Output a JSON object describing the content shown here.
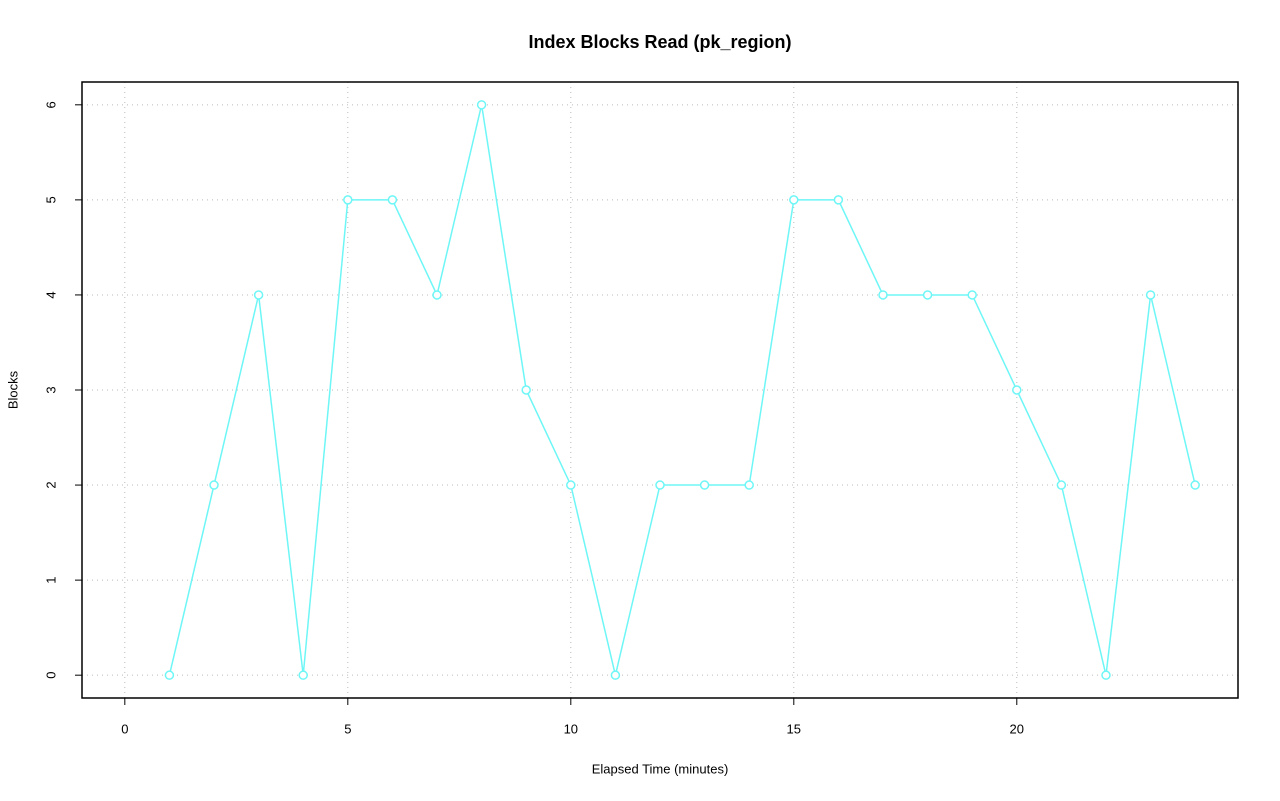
{
  "chart_data": {
    "type": "line",
    "title": "Index Blocks Read (pk_region)",
    "x_label": "Elapsed Time (minutes)",
    "y_label": "Blocks",
    "x": [
      1,
      2,
      3,
      4,
      5,
      6,
      7,
      8,
      9,
      10,
      11,
      12,
      13,
      14,
      15,
      16,
      17,
      18,
      19,
      20,
      21,
      22,
      23,
      24
    ],
    "series": [
      {
        "name": "pk_region",
        "color": "#6ef6f6",
        "values": [
          0,
          2,
          4,
          0,
          5,
          5,
          4,
          6,
          3,
          2,
          0,
          2,
          2,
          2,
          5,
          5,
          4,
          4,
          4,
          3,
          2,
          0,
          4,
          2
        ]
      }
    ],
    "xlim": [
      -0.96,
      24.96
    ],
    "xticks": [
      0,
      5,
      10,
      15,
      20
    ],
    "ylim": [
      -0.24,
      6.24
    ],
    "yticks": [
      0,
      1,
      2,
      3,
      4,
      5,
      6
    ],
    "grid": true,
    "legend": false
  }
}
